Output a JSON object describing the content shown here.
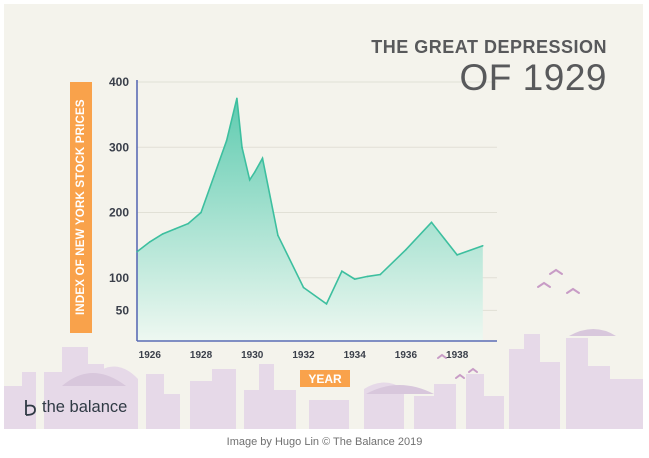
{
  "title_line1": "THE GREAT DEPRESSION",
  "title_line2": "OF 1929",
  "brand": "the balance",
  "caption": "Image by Hugo Lin © The Balance 2019",
  "colors": {
    "background": "#f4f3ec",
    "area_top": "#5fcbb0",
    "area_bottom": "#eef8f1",
    "line": "#3dbf9f",
    "axis": "#5b6cb5",
    "tick_text": "#3a3f4a",
    "label_box": "#f9a24b",
    "skyline": "#e6d9e8",
    "birds": "#c89cc6"
  },
  "chart_data": {
    "type": "area",
    "xlabel": "YEAR",
    "ylabel": "INDEX OF NEW YORK STOCK PRICES",
    "xlim": [
      1925.5,
      1939.4
    ],
    "ylim": [
      0,
      400
    ],
    "x_ticks": [
      {
        "value": 1926,
        "label": "1926"
      },
      {
        "value": 1928,
        "label": "1928"
      },
      {
        "value": 1930,
        "label": "1930"
      },
      {
        "value": 1932,
        "label": "1932"
      },
      {
        "value": 1934,
        "label": "1934"
      },
      {
        "value": 1936,
        "label": "1936"
      },
      {
        "value": 1938,
        "label": "1938"
      }
    ],
    "y_ticks": [
      {
        "value": 400,
        "label": "400"
      },
      {
        "value": 300,
        "label": "300"
      },
      {
        "value": 200,
        "label": "200"
      },
      {
        "value": 100,
        "label": "100"
      },
      {
        "value": 50,
        "label": "50"
      }
    ],
    "grid": true,
    "series": [
      {
        "x": [
          1925.5,
          1926.0,
          1926.5,
          1927.0,
          1927.5,
          1928.0,
          1928.5,
          1929.0,
          1929.4,
          1929.6,
          1929.9,
          1930.1,
          1930.4,
          1931.0,
          1932.0,
          1932.9,
          1933.5,
          1934.0,
          1934.5,
          1935.0,
          1936.0,
          1937.0,
          1937.5,
          1938.0,
          1939.0
        ],
        "y": [
          140,
          155,
          167,
          175,
          183,
          200,
          255,
          310,
          375,
          300,
          250,
          262,
          283,
          165,
          85,
          60,
          110,
          98,
          102,
          105,
          143,
          185,
          160,
          135,
          149
        ]
      }
    ]
  }
}
